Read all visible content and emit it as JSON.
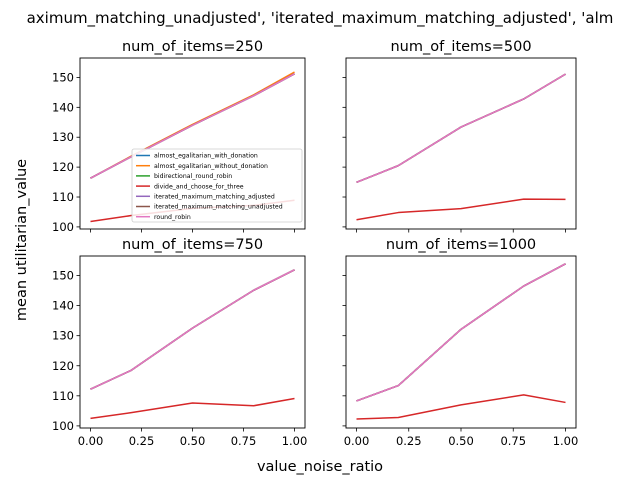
{
  "figure": {
    "suptitle": "aximum_matching_unadjusted', 'iterated_maximum_matching_adjusted', 'alm",
    "xlabel": "value_noise_ratio",
    "ylabel": "mean utilitarian_value"
  },
  "colors": {
    "almost_egalitarian_with_donation": "#1f77b4",
    "almost_egalitarian_without_donation": "#ff7f0e",
    "bidirectional_round_robin": "#2ca02c",
    "divide_and_choose_for_three": "#d62728",
    "iterated_maximum_matching_adjusted": "#9467bd",
    "iterated_maximum_matching_unadjusted": "#8c564b",
    "round_robin": "#e377c2"
  },
  "chart_data": [
    {
      "type": "line",
      "title": "num_of_items=250",
      "xlabel": "",
      "ylabel": "",
      "x": [
        0.0,
        0.2,
        0.5,
        0.8,
        1.0
      ],
      "xticks": [
        "0.00",
        "0.25",
        "0.50",
        "0.75",
        "1.00"
      ],
      "ylim": [
        99.3,
        156.5
      ],
      "yticks": [
        "100",
        "110",
        "120",
        "130",
        "140",
        "150"
      ],
      "grid": false,
      "legend": "lower-right",
      "series": [
        {
          "name": "almost_egalitarian_with_donation",
          "values": [
            116.3,
            123.5,
            134.0,
            143.9,
            151.2
          ]
        },
        {
          "name": "almost_egalitarian_without_donation",
          "values": [
            116.3,
            123.7,
            134.3,
            144.2,
            151.8
          ]
        },
        {
          "name": "bidirectional_round_robin",
          "values": [
            116.3,
            123.5,
            134.0,
            143.9,
            151.2
          ]
        },
        {
          "name": "divide_and_choose_for_three",
          "values": [
            101.8,
            103.8,
            106.2,
            107.2,
            108.9
          ]
        },
        {
          "name": "iterated_maximum_matching_adjusted",
          "values": [
            116.3,
            123.5,
            134.0,
            143.9,
            151.2
          ]
        },
        {
          "name": "iterated_maximum_matching_unadjusted",
          "values": [
            116.3,
            123.5,
            134.0,
            143.9,
            151.2
          ]
        },
        {
          "name": "round_robin",
          "values": [
            116.3,
            123.5,
            134.0,
            143.9,
            151.2
          ]
        }
      ]
    },
    {
      "type": "line",
      "title": "num_of_items=500",
      "xlabel": "",
      "ylabel": "",
      "x": [
        0.0,
        0.2,
        0.5,
        0.8,
        1.0
      ],
      "xticks": [
        "0.00",
        "0.25",
        "0.50",
        "0.75",
        "1.00"
      ],
      "ylim": [
        99.3,
        156.5
      ],
      "yticks": [
        "100",
        "110",
        "120",
        "130",
        "140",
        "150"
      ],
      "grid": false,
      "series": [
        {
          "name": "almost_egalitarian_with_donation",
          "values": [
            114.9,
            120.5,
            133.4,
            142.8,
            151.1
          ]
        },
        {
          "name": "almost_egalitarian_without_donation",
          "values": [
            114.9,
            120.5,
            133.4,
            142.8,
            151.1
          ]
        },
        {
          "name": "bidirectional_round_robin",
          "values": [
            114.9,
            120.5,
            133.4,
            142.8,
            151.1
          ]
        },
        {
          "name": "divide_and_choose_for_three",
          "values": [
            102.4,
            104.8,
            106.1,
            109.3,
            109.2
          ]
        },
        {
          "name": "iterated_maximum_matching_adjusted",
          "values": [
            114.9,
            120.5,
            133.4,
            142.8,
            151.1
          ]
        },
        {
          "name": "iterated_maximum_matching_unadjusted",
          "values": [
            114.9,
            120.5,
            133.4,
            142.8,
            151.1
          ]
        },
        {
          "name": "round_robin",
          "values": [
            114.9,
            120.5,
            133.4,
            142.8,
            151.1
          ]
        }
      ]
    },
    {
      "type": "line",
      "title": "num_of_items=750",
      "xlabel": "",
      "ylabel": "",
      "x": [
        0.0,
        0.2,
        0.5,
        0.8,
        1.0
      ],
      "xticks": [
        "0.00",
        "0.25",
        "0.50",
        "0.75",
        "1.00"
      ],
      "ylim": [
        99.3,
        156.5
      ],
      "yticks": [
        "100",
        "110",
        "120",
        "130",
        "140",
        "150"
      ],
      "grid": false,
      "series": [
        {
          "name": "almost_egalitarian_with_donation",
          "values": [
            112.2,
            118.5,
            132.5,
            145.1,
            151.9
          ]
        },
        {
          "name": "almost_egalitarian_without_donation",
          "values": [
            112.2,
            118.5,
            132.5,
            145.1,
            151.9
          ]
        },
        {
          "name": "bidirectional_round_robin",
          "values": [
            112.2,
            118.5,
            132.5,
            145.1,
            151.9
          ]
        },
        {
          "name": "divide_and_choose_for_three",
          "values": [
            102.5,
            104.4,
            107.6,
            106.7,
            109.1
          ]
        },
        {
          "name": "iterated_maximum_matching_adjusted",
          "values": [
            112.2,
            118.5,
            132.5,
            145.1,
            151.9
          ]
        },
        {
          "name": "iterated_maximum_matching_unadjusted",
          "values": [
            112.2,
            118.5,
            132.5,
            145.1,
            151.9
          ]
        },
        {
          "name": "round_robin",
          "values": [
            112.2,
            118.5,
            132.5,
            145.1,
            151.9
          ]
        }
      ]
    },
    {
      "type": "line",
      "title": "num_of_items=1000",
      "xlabel": "",
      "ylabel": "",
      "x": [
        0.0,
        0.2,
        0.5,
        0.8,
        1.0
      ],
      "xticks": [
        "0.00",
        "0.25",
        "0.50",
        "0.75",
        "1.00"
      ],
      "ylim": [
        99.3,
        156.5
      ],
      "yticks": [
        "100",
        "110",
        "120",
        "130",
        "140",
        "150"
      ],
      "grid": false,
      "series": [
        {
          "name": "almost_egalitarian_with_donation",
          "values": [
            108.3,
            113.4,
            132.1,
            146.5,
            153.9
          ]
        },
        {
          "name": "almost_egalitarian_without_donation",
          "values": [
            108.3,
            113.4,
            132.1,
            146.5,
            153.9
          ]
        },
        {
          "name": "bidirectional_round_robin",
          "values": [
            108.3,
            113.4,
            132.1,
            146.5,
            153.9
          ]
        },
        {
          "name": "divide_and_choose_for_three",
          "values": [
            102.3,
            102.8,
            107.0,
            110.3,
            107.8
          ]
        },
        {
          "name": "iterated_maximum_matching_adjusted",
          "values": [
            108.3,
            113.4,
            132.1,
            146.5,
            153.9
          ]
        },
        {
          "name": "iterated_maximum_matching_unadjusted",
          "values": [
            108.3,
            113.4,
            132.1,
            146.5,
            153.9
          ]
        },
        {
          "name": "round_robin",
          "values": [
            108.3,
            113.4,
            132.1,
            146.5,
            153.9
          ]
        }
      ]
    }
  ]
}
